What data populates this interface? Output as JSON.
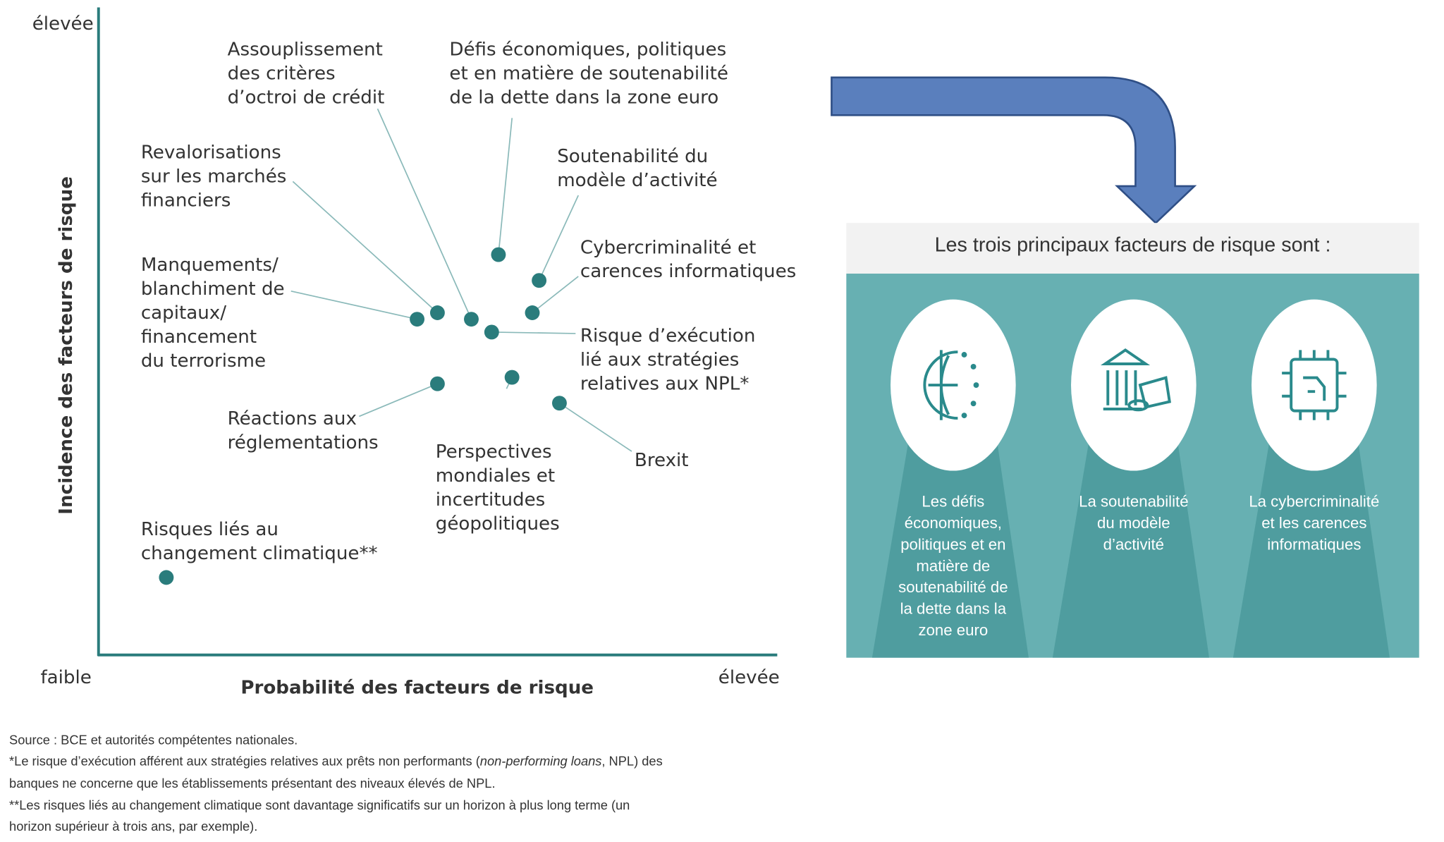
{
  "chart_data": {
    "type": "scatter",
    "xlabel": "Probabilité des facteurs de risque",
    "ylabel": "Incidence des facteurs de risque",
    "x_low_label": "faible",
    "x_high_label": "élevée",
    "y_high_label": "élevée",
    "xlim": [
      0,
      100
    ],
    "ylim": [
      0,
      100
    ],
    "color": "#2a7c7c",
    "points": [
      {
        "label": [
          "Assouplissement",
          "des critères",
          "d’octroi de crédit"
        ],
        "x": 55,
        "y": 52
      },
      {
        "label": [
          "Défis économiques, politiques",
          "et en matière de soutenabilité",
          "de la dette dans la zone euro"
        ],
        "x": 59,
        "y": 62
      },
      {
        "label": [
          "Revalorisations",
          "sur les marchés",
          "financiers"
        ],
        "x": 50,
        "y": 53
      },
      {
        "label": [
          "Soutenabilité du",
          "modèle d’activité"
        ],
        "x": 65,
        "y": 58
      },
      {
        "label": [
          "Cybercriminalité et",
          "carences informatiques"
        ],
        "x": 64,
        "y": 53
      },
      {
        "label": [
          "Manquements/",
          "blanchiment de",
          "capitaux/",
          "financement",
          "du terrorisme"
        ],
        "x": 47,
        "y": 52
      },
      {
        "label": [
          "Risque d’exécution",
          "lié aux stratégies",
          "relatives aux NPL*"
        ],
        "x": 58,
        "y": 50
      },
      {
        "label": [
          "Réactions aux",
          "réglementations"
        ],
        "x": 50,
        "y": 42
      },
      {
        "label": [
          "Perspectives",
          "mondiales et",
          "incertitudes",
          "géopolitiques"
        ],
        "x": 61,
        "y": 43
      },
      {
        "label": [
          "Brexit"
        ],
        "x": 68,
        "y": 39
      },
      {
        "label": [
          "Risques liés au",
          "changement climatique**"
        ],
        "x": 10,
        "y": 12
      }
    ]
  },
  "panel": {
    "title": "Les trois principaux facteurs de risque sont :",
    "items": [
      [
        "Les défis",
        "économiques,",
        "politiques et en",
        "matière de",
        "soutenabilité de",
        "la dette dans la",
        "zone euro"
      ],
      [
        "La soutenabilité",
        "du modèle",
        "d’activité"
      ],
      [
        "La cybercriminalité",
        "et les carences",
        "informatiques"
      ]
    ]
  },
  "footer": {
    "source": "Source : BCE et autorités compétentes nationales.",
    "note1": [
      "*Le risque d’exécution afférent aux stratégies relatives aux prêts non performants (",
      "non-performing loans",
      ", NPL) des"
    ],
    "note1_line2": "banques ne concerne que les établissements présentant des niveaux élevés de NPL.",
    "note2": [
      "**Les risques liés au changement climatique sont davantage significatifs sur un horizon à plus long terme (un",
      "horizon supérieur à trois ans, par exemple)."
    ]
  }
}
